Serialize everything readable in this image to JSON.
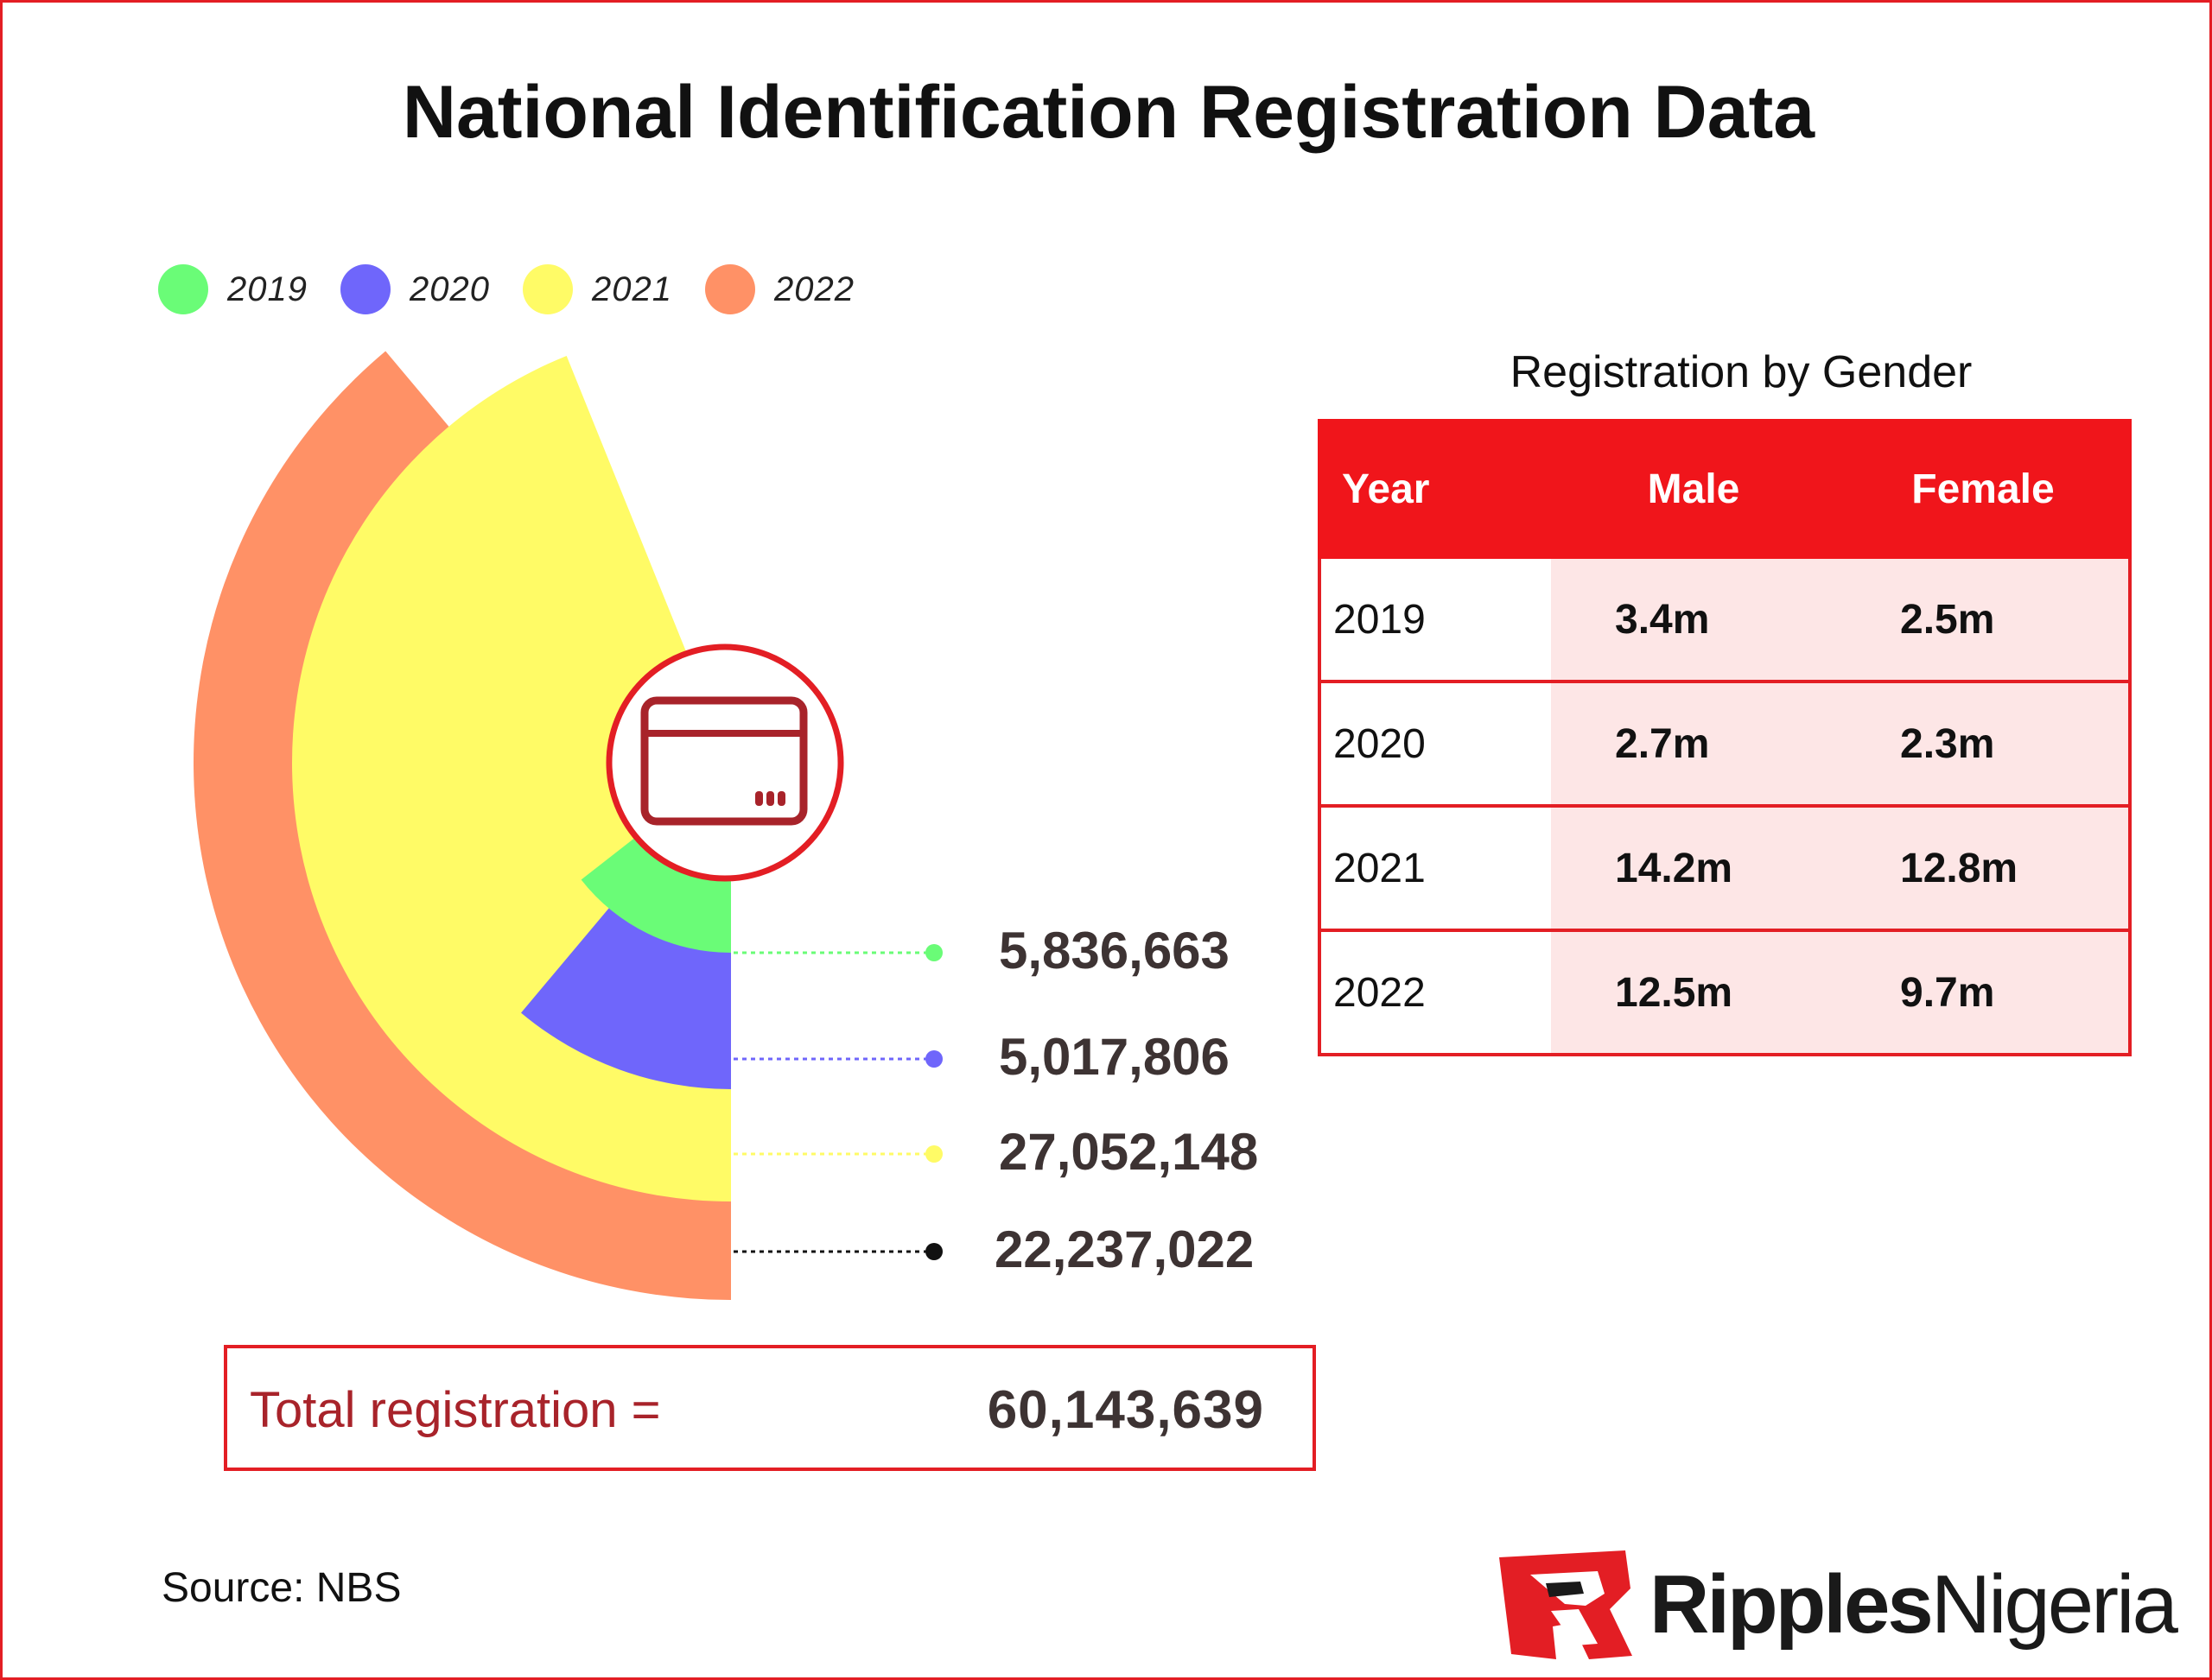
{
  "title": "National Identification Registration Data",
  "colors": {
    "accent": "#e31e24",
    "y2019": "#6afc77",
    "y2020": "#6f66fb",
    "y2021": "#fffb66",
    "y2022": "#ff9166",
    "y2022_leader": "#111111"
  },
  "chart_data": {
    "type": "radial-bar",
    "title": "National Identification Registration Data",
    "series": [
      {
        "name": "2019",
        "value": 5836663,
        "label": "5,836,663"
      },
      {
        "name": "2020",
        "value": 5017806,
        "label": "5,017,806"
      },
      {
        "name": "2021",
        "value": 27052148,
        "label": "27,052,148"
      },
      {
        "name": "2022",
        "value": 22237022,
        "label": "22,237,022"
      }
    ],
    "legend_position": "top-left",
    "center_icon": "id-card-icon"
  },
  "legend": [
    {
      "label": "2019"
    },
    {
      "label": "2020"
    },
    {
      "label": "2021"
    },
    {
      "label": "2022"
    }
  ],
  "gender_table": {
    "title": "Registration by Gender",
    "headers": {
      "year": "Year",
      "male": "Male",
      "female": "Female"
    },
    "rows": [
      {
        "year": "2019",
        "male": "3.4m",
        "female": "2.5m"
      },
      {
        "year": "2020",
        "male": "2.7m",
        "female": "2.3m"
      },
      {
        "year": "2021",
        "male": "14.2m",
        "female": "12.8m"
      },
      {
        "year": "2022",
        "male": "12.5m",
        "female": "9.7m"
      }
    ]
  },
  "total": {
    "label": "Total registration =",
    "value": "60,143,639"
  },
  "source": "Source: NBS",
  "brand": {
    "part1": "Ripples",
    "part2": "Nigeria"
  }
}
